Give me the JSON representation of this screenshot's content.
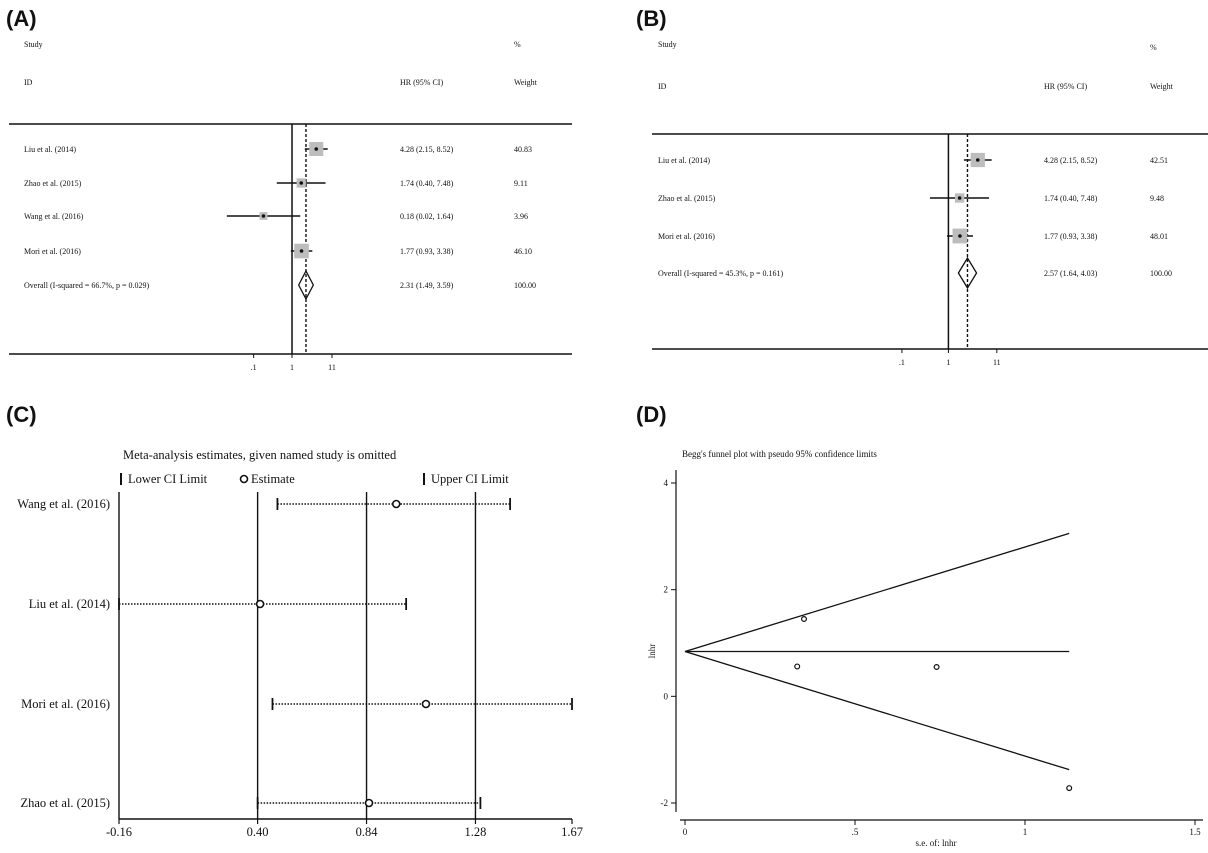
{
  "panels": {
    "A": {
      "letter": "(A)",
      "header_study": "Study",
      "header_id": "ID",
      "header_hr": "HR (95% CI)",
      "header_pct": "%",
      "header_weight": "Weight",
      "x_ticks": [
        ".1",
        "1",
        "11"
      ]
    },
    "B": {
      "letter": "(B)",
      "header_study": "Study",
      "header_id": "ID",
      "header_hr": "HR (95% CI)",
      "header_pct": "%",
      "header_weight": "Weight",
      "x_ticks": [
        ".1",
        "1",
        "11"
      ]
    },
    "C": {
      "letter": "(C)",
      "title": "Meta-analysis estimates, given named study is omitted",
      "legend": [
        "Lower CI Limit",
        "Estimate",
        "Upper CI Limit"
      ],
      "x_ticks": [
        "-0.16",
        "0.40",
        "0.84",
        "1.28",
        "1.67"
      ]
    },
    "D": {
      "letter": "(D)",
      "title": "Begg's funnel plot with pseudo 95% confidence limits",
      "ylabel": "lnhr",
      "xlabel": "s.e. of: lnhr",
      "x_ticks": [
        "0",
        ".5",
        "1",
        "1.5"
      ],
      "y_ticks": [
        "-2",
        "0",
        "2",
        "4"
      ]
    }
  },
  "chart_data": [
    {
      "type": "forest",
      "panel": "A",
      "scale": "log",
      "null_line": 1,
      "pooled": 2.31,
      "rows": [
        {
          "study": "Liu et al. (2014)",
          "hr": 4.28,
          "lo": 2.15,
          "hi": 8.52,
          "hr_text": "4.28 (2.15, 8.52)",
          "weight": 40.83,
          "weight_text": "40.83"
        },
        {
          "study": "Zhao et al. (2015)",
          "hr": 1.74,
          "lo": 0.4,
          "hi": 7.48,
          "hr_text": "1.74 (0.40, 7.48)",
          "weight": 9.11,
          "weight_text": "9.11"
        },
        {
          "study": "Wang et al. (2016)",
          "hr": 0.18,
          "lo": 0.02,
          "hi": 1.64,
          "hr_text": "0.18 (0.02, 1.64)",
          "weight": 3.96,
          "weight_text": "3.96"
        },
        {
          "study": "Mori et al. (2016)",
          "hr": 1.77,
          "lo": 0.93,
          "hi": 3.38,
          "hr_text": "1.77 (0.93, 3.38)",
          "weight": 46.1,
          "weight_text": "46.10"
        }
      ],
      "overall": {
        "label": "Overall  (I-squared = 66.7%, p = 0.029)",
        "hr": 2.31,
        "lo": 1.49,
        "hi": 3.59,
        "hr_text": "2.31 (1.49, 3.59)",
        "weight_text": "100.00"
      }
    },
    {
      "type": "forest",
      "panel": "B",
      "scale": "log",
      "null_line": 1,
      "pooled": 2.57,
      "rows": [
        {
          "study": "Liu et al. (2014)",
          "hr": 4.28,
          "lo": 2.15,
          "hi": 8.52,
          "hr_text": "4.28 (2.15, 8.52)",
          "weight": 42.51,
          "weight_text": "42.51"
        },
        {
          "study": "Zhao et al. (2015)",
          "hr": 1.74,
          "lo": 0.4,
          "hi": 7.48,
          "hr_text": "1.74 (0.40, 7.48)",
          "weight": 9.48,
          "weight_text": "9.48"
        },
        {
          "study": "Mori et al. (2016)",
          "hr": 1.77,
          "lo": 0.93,
          "hi": 3.38,
          "hr_text": "1.77 (0.93, 3.38)",
          "weight": 48.01,
          "weight_text": "48.01"
        }
      ],
      "overall": {
        "label": "Overall  (I-squared = 45.3%, p = 0.161)",
        "hr": 2.57,
        "lo": 1.64,
        "hi": 4.03,
        "hr_text": "2.57 (1.64, 4.03)",
        "weight_text": "100.00"
      }
    },
    {
      "type": "influence",
      "panel": "C",
      "xlim": [
        -0.16,
        1.67
      ],
      "reference_lines": [
        -0.16,
        0.4,
        0.84,
        1.28
      ],
      "rows": [
        {
          "study": "Wang et al. (2016)",
          "lower": 0.48,
          "estimate": 0.96,
          "upper": 1.42
        },
        {
          "study": "Liu et al. (2014)",
          "lower": -0.16,
          "estimate": 0.41,
          "upper": 1.0
        },
        {
          "study": "Mori et al. (2016)",
          "lower": 0.46,
          "estimate": 1.08,
          "upper": 1.67
        },
        {
          "study": "Zhao et al. (2015)",
          "lower": 0.4,
          "estimate": 0.85,
          "upper": 1.3
        }
      ]
    },
    {
      "type": "scatter",
      "panel": "D",
      "xlim": [
        0,
        1.5
      ],
      "ylim": [
        -2,
        4
      ],
      "pooled": 0.84,
      "funnel_xmax": 1.13,
      "points": [
        {
          "x": 0.35,
          "y": 1.45
        },
        {
          "x": 0.33,
          "y": 0.56
        },
        {
          "x": 0.74,
          "y": 0.55
        },
        {
          "x": 1.13,
          "y": -1.72
        }
      ]
    }
  ]
}
